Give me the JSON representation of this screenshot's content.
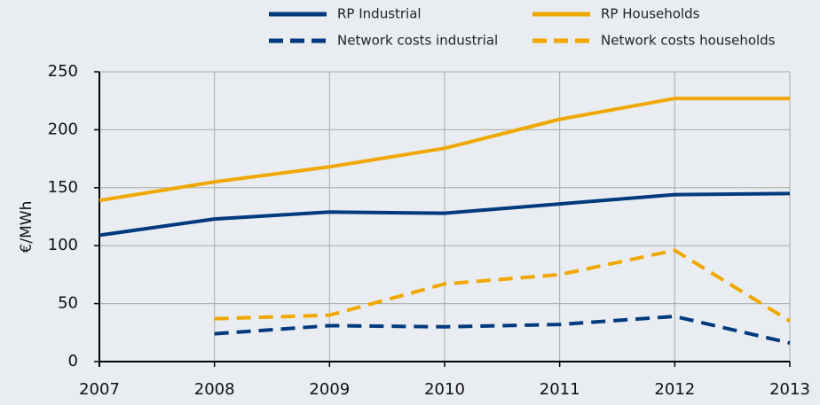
{
  "chart_data": {
    "type": "line",
    "y_label": "€/MWh",
    "x": [
      2007,
      2008,
      2009,
      2010,
      2011,
      2012,
      2013
    ],
    "xlim": [
      2007,
      2013
    ],
    "xticks": [
      2007,
      2008,
      2009,
      2010,
      2011,
      2012,
      2013
    ],
    "ylim": [
      0,
      250
    ],
    "yticks": [
      0,
      50,
      100,
      150,
      200,
      250
    ],
    "grid": true,
    "legend": "top",
    "series": [
      {
        "name": "RP Industrial",
        "color": "#003a7d",
        "dashed": false,
        "values": [
          109,
          123,
          129,
          128,
          136,
          144,
          145
        ]
      },
      {
        "name": "RP Households",
        "color": "#f0a800",
        "dashed": false,
        "values": [
          139,
          155,
          168,
          184,
          209,
          227,
          227
        ]
      },
      {
        "name": "Network costs industrial",
        "color": "#003a7d",
        "dashed": true,
        "values": [
          null,
          24,
          31,
          30,
          32,
          39,
          16
        ]
      },
      {
        "name": "Network costs households",
        "color": "#f0a800",
        "dashed": true,
        "values": [
          null,
          37,
          40,
          67,
          75,
          96,
          35
        ]
      }
    ]
  }
}
